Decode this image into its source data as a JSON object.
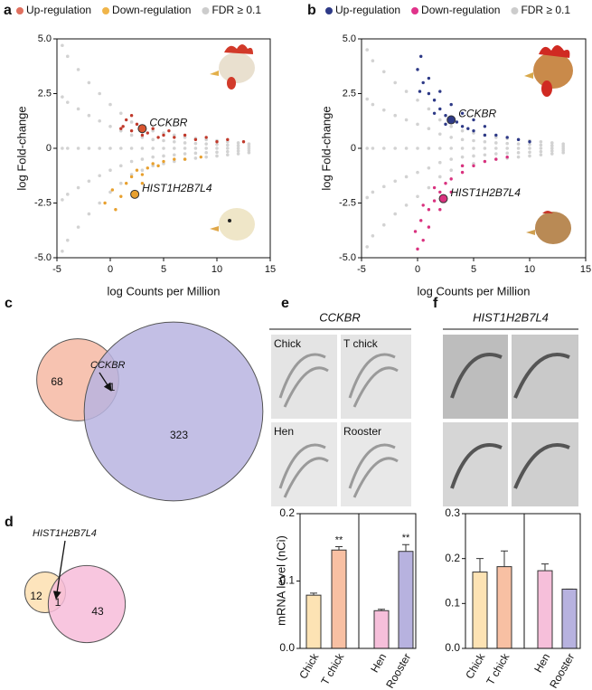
{
  "chart_data": [
    {
      "type": "scatter",
      "panel": "a",
      "xlabel": "log Counts per Million",
      "ylabel": "log Fold-change",
      "xlim": [
        -5,
        15
      ],
      "ylim": [
        -5,
        5
      ],
      "xticks": [
        -5,
        0,
        5,
        10,
        15
      ],
      "yticks": [
        {
          "value": -5,
          "label": "-5.0"
        },
        -2.5,
        0,
        2.5,
        {
          "value": 5,
          "label": "5.0"
        }
      ],
      "series": [
        {
          "name": "Up-regulation",
          "color": "#c0392b",
          "legend_color": "#e0705f",
          "x": [
            1,
            1.5,
            2,
            2.5,
            3,
            3.5,
            4,
            4.5,
            5,
            5.5,
            6,
            7,
            8,
            9,
            10,
            11,
            12.5,
            2,
            1.2
          ],
          "values": [
            0.9,
            1.3,
            0.8,
            1.1,
            0.6,
            0.7,
            0.9,
            0.5,
            0.6,
            0.8,
            0.5,
            0.6,
            0.4,
            0.5,
            0.3,
            0.4,
            0.3,
            1.5,
            1.0
          ]
        },
        {
          "name": "Down-regulation",
          "color": "#e8a02e",
          "legend_color": "#f0b54a",
          "x": [
            0.5,
            1,
            1.5,
            2,
            2.5,
            3,
            3.5,
            4,
            4.5,
            5,
            6,
            7,
            8.5,
            -0.5,
            0.2,
            3
          ],
          "values": [
            -2.8,
            -2.2,
            -1.6,
            -1.3,
            -1.0,
            -1.2,
            -0.9,
            -0.7,
            -0.8,
            -0.6,
            -0.5,
            -0.5,
            -0.4,
            -2.5,
            -1.9,
            -1.6
          ]
        },
        {
          "name": "FDR ≥ 0.1",
          "color": "#d2d2d2",
          "legend_color": "#cccccc",
          "x": [
            -4.5,
            -4.5,
            -4.5,
            -4.5,
            -4.5,
            -4,
            -4,
            -4,
            -4,
            -4,
            -3,
            -3,
            -3,
            -3,
            -3,
            -2,
            -2,
            -2,
            -2,
            -2,
            -1,
            -1,
            -1,
            -1,
            -1,
            0,
            0,
            0,
            0,
            0,
            1,
            1,
            1,
            1,
            1,
            2,
            2,
            2,
            2,
            2,
            3,
            3,
            3,
            3,
            3,
            4,
            4,
            4,
            4,
            4,
            5,
            5,
            5,
            5,
            5,
            6,
            6,
            6,
            6,
            6,
            7,
            7,
            7,
            7,
            7,
            8,
            8,
            8,
            8,
            8,
            9,
            9,
            9,
            9,
            9,
            10,
            10,
            10,
            10,
            10,
            11,
            11,
            11,
            11,
            11,
            12,
            12,
            12,
            12,
            12,
            13,
            13,
            13,
            13,
            13
          ],
          "values": [
            4.7,
            2.35,
            0,
            -2.35,
            -4.7,
            4.2,
            2.1,
            0,
            -2.1,
            -4.2,
            3.6,
            1.8,
            0,
            -1.8,
            -3.6,
            3.0,
            1.5,
            0,
            -1.5,
            -3.0,
            2.5,
            1.25,
            0,
            -1.25,
            -2.5,
            2.0,
            1.0,
            0,
            -1.0,
            -2.0,
            1.6,
            0.8,
            0,
            -0.8,
            -1.6,
            1.2,
            0.6,
            0,
            -0.6,
            -1.2,
            1.0,
            0.5,
            0,
            -0.5,
            -1.0,
            0.8,
            0.4,
            0,
            -0.4,
            -0.8,
            0.7,
            0.35,
            0,
            -0.35,
            -0.7,
            0.6,
            0.3,
            0,
            -0.3,
            -0.6,
            0.5,
            0.25,
            0,
            -0.25,
            -0.5,
            0.45,
            0.22,
            0,
            -0.22,
            -0.45,
            0.4,
            0.2,
            0,
            -0.2,
            -0.4,
            0.35,
            0.18,
            0,
            -0.18,
            -0.35,
            0.3,
            0.15,
            0,
            -0.15,
            -0.3,
            0.25,
            0.12,
            0,
            -0.12,
            -0.25,
            0.2,
            0.1,
            0,
            -0.1,
            -0.2
          ]
        }
      ],
      "highlights": [
        {
          "label": "CCKBR",
          "x": 3,
          "y": 0.9,
          "color": "#d9542f"
        },
        {
          "label": "HIST1H2B7L4",
          "x": 2.3,
          "y": -2.1,
          "color": "#e8a02e"
        }
      ]
    },
    {
      "type": "scatter",
      "panel": "b",
      "xlabel": "log Counts per Million",
      "ylabel": "log Fold-change",
      "xlim": [
        -5,
        15
      ],
      "ylim": [
        -5,
        5
      ],
      "xticks": [
        -5,
        0,
        5,
        10,
        15
      ],
      "yticks": [
        {
          "value": -5,
          "label": "-5.0"
        },
        -2.5,
        0,
        2.5,
        {
          "value": 5,
          "label": "5.0"
        }
      ],
      "series": [
        {
          "name": "Up-regulation",
          "color": "#2e3a87",
          "legend_color": "#2e3a87",
          "x": [
            0,
            0.3,
            0.5,
            1,
            1,
            1.5,
            2,
            2,
            2.5,
            3,
            3,
            3.5,
            4,
            4,
            4.5,
            5,
            5,
            6,
            6,
            7,
            8,
            9,
            10,
            1.5,
            2.5,
            0.2
          ],
          "values": [
            3.6,
            4.2,
            3.0,
            2.5,
            3.2,
            2.2,
            1.8,
            2.6,
            1.5,
            1.3,
            2.0,
            1.2,
            1.0,
            1.6,
            0.9,
            0.8,
            1.3,
            0.6,
            1.0,
            0.6,
            0.5,
            0.4,
            0.3,
            1.6,
            1.1,
            2.6
          ]
        },
        {
          "name": "Down-regulation",
          "color": "#d9327f",
          "legend_color": "#e0338a",
          "x": [
            0,
            -0.2,
            0.3,
            0.5,
            1,
            1,
            1.5,
            2,
            2,
            2.5,
            3,
            3,
            4,
            4,
            5,
            6,
            7,
            8,
            1.5,
            0.5
          ],
          "values": [
            -4.6,
            -3.8,
            -3.3,
            -4.2,
            -2.8,
            -3.6,
            -2.4,
            -2.0,
            -2.8,
            -1.6,
            -1.4,
            -2.0,
            -1.1,
            -0.8,
            -0.8,
            -0.6,
            -0.5,
            -0.4,
            -1.8,
            -2.6
          ]
        },
        {
          "name": "FDR ≥ 0.1",
          "color": "#d2d2d2",
          "legend_color": "#cccccc",
          "x": [
            -4.5,
            -4.5,
            -4.5,
            -4.5,
            -4.5,
            -4,
            -4,
            -4,
            -4,
            -4,
            -3,
            -3,
            -3,
            -3,
            -3,
            -2,
            -2,
            -2,
            -2,
            -2,
            -1,
            -1,
            -1,
            -1,
            -1,
            0,
            0,
            0,
            0,
            0,
            1,
            1,
            1,
            1,
            1,
            2,
            2,
            2,
            2,
            2,
            3,
            3,
            3,
            3,
            3,
            4,
            4,
            4,
            4,
            4,
            5,
            5,
            5,
            5,
            5,
            6,
            6,
            6,
            6,
            6,
            7,
            7,
            7,
            7,
            7,
            8,
            8,
            8,
            8,
            8,
            9,
            9,
            9,
            9,
            9,
            10,
            10,
            10,
            10,
            10,
            11,
            11,
            11,
            11,
            11,
            12,
            12,
            12,
            12,
            12,
            13,
            13,
            13,
            13,
            13
          ],
          "values": [
            4.5,
            2.25,
            0,
            -2.25,
            -4.5,
            4.0,
            2.0,
            0,
            -2.0,
            -4.0,
            3.5,
            1.75,
            0,
            -1.75,
            -3.5,
            3.0,
            1.5,
            0,
            -1.5,
            -3.0,
            2.6,
            1.3,
            0,
            -1.3,
            -2.6,
            2.2,
            1.1,
            0,
            -1.1,
            -2.2,
            1.8,
            0.9,
            0,
            -0.9,
            -1.8,
            1.3,
            0.65,
            0,
            -0.65,
            -1.3,
            1.0,
            0.5,
            0,
            -0.5,
            -1.0,
            0.8,
            0.4,
            0,
            -0.4,
            -0.8,
            0.7,
            0.35,
            0,
            -0.35,
            -0.7,
            0.6,
            0.3,
            0,
            -0.3,
            -0.6,
            0.5,
            0.25,
            0,
            -0.25,
            -0.5,
            0.45,
            0.22,
            0,
            -0.22,
            -0.45,
            0.4,
            0.2,
            0,
            -0.2,
            -0.4,
            0.35,
            0.18,
            0,
            -0.18,
            -0.35,
            0.3,
            0.15,
            0,
            -0.15,
            -0.3,
            0.25,
            0.12,
            0,
            -0.12,
            -0.25,
            0.2,
            0.1,
            0,
            -0.1,
            -0.2
          ]
        }
      ],
      "highlights": [
        {
          "label": "CCKBR",
          "x": 3,
          "y": 1.3,
          "color": "#2e3a87"
        },
        {
          "label": "HIST1H2B7L4",
          "x": 2.3,
          "y": -2.3,
          "color": "#d9327f"
        }
      ]
    },
    {
      "type": "venn",
      "panel": "c",
      "sets": [
        {
          "size": 68,
          "color": "#f6b9a3"
        },
        {
          "size": 323,
          "color": "#b9b4e1"
        }
      ],
      "overlap": 1,
      "annotation": "CCKBR"
    },
    {
      "type": "venn",
      "panel": "d",
      "sets": [
        {
          "size": 12,
          "color": "#fddfb0"
        },
        {
          "size": 43,
          "color": "#f7bcd9"
        }
      ],
      "overlap": 1,
      "annotation": "HIST1H2B7L4"
    },
    {
      "type": "bar",
      "panel": "e",
      "title": "CCKBR",
      "ylabel": "mRNA level (nCi)",
      "image_labels": [
        "Chick",
        "T chick",
        "Hen",
        "Rooster"
      ],
      "categories": [
        "Chick",
        "T chick",
        "Hen",
        "Rooster"
      ],
      "values": [
        0.079,
        0.146,
        0.056,
        0.144
      ],
      "errors": [
        0.003,
        0.005,
        0.002,
        0.01
      ],
      "colors": [
        "#fde3b4",
        "#f8c0a3",
        "#f6bfda",
        "#b7b2df"
      ],
      "annotations": [
        {
          "category": "T chick",
          "text": "**"
        },
        {
          "category": "Rooster",
          "text": "**"
        }
      ],
      "ylim": [
        0,
        0.2
      ],
      "yticks": [
        {
          "value": 0,
          "label": "0.0"
        },
        0.1,
        0.2
      ]
    },
    {
      "type": "bar",
      "panel": "f",
      "title": "HIST1H2B7L4",
      "categories": [
        "Chick",
        "T chick",
        "Hen",
        "Rooster"
      ],
      "values": [
        0.17,
        0.182,
        0.173,
        0.132
      ],
      "errors": [
        0.03,
        0.035,
        0.015,
        0
      ],
      "colors": [
        "#fde3b4",
        "#f8c0a3",
        "#f6bfda",
        "#b7b2df"
      ],
      "ylim": [
        0,
        0.3
      ],
      "yticks": [
        {
          "value": 0,
          "label": "0.0"
        },
        0.1,
        0.2,
        0.3
      ]
    }
  ]
}
